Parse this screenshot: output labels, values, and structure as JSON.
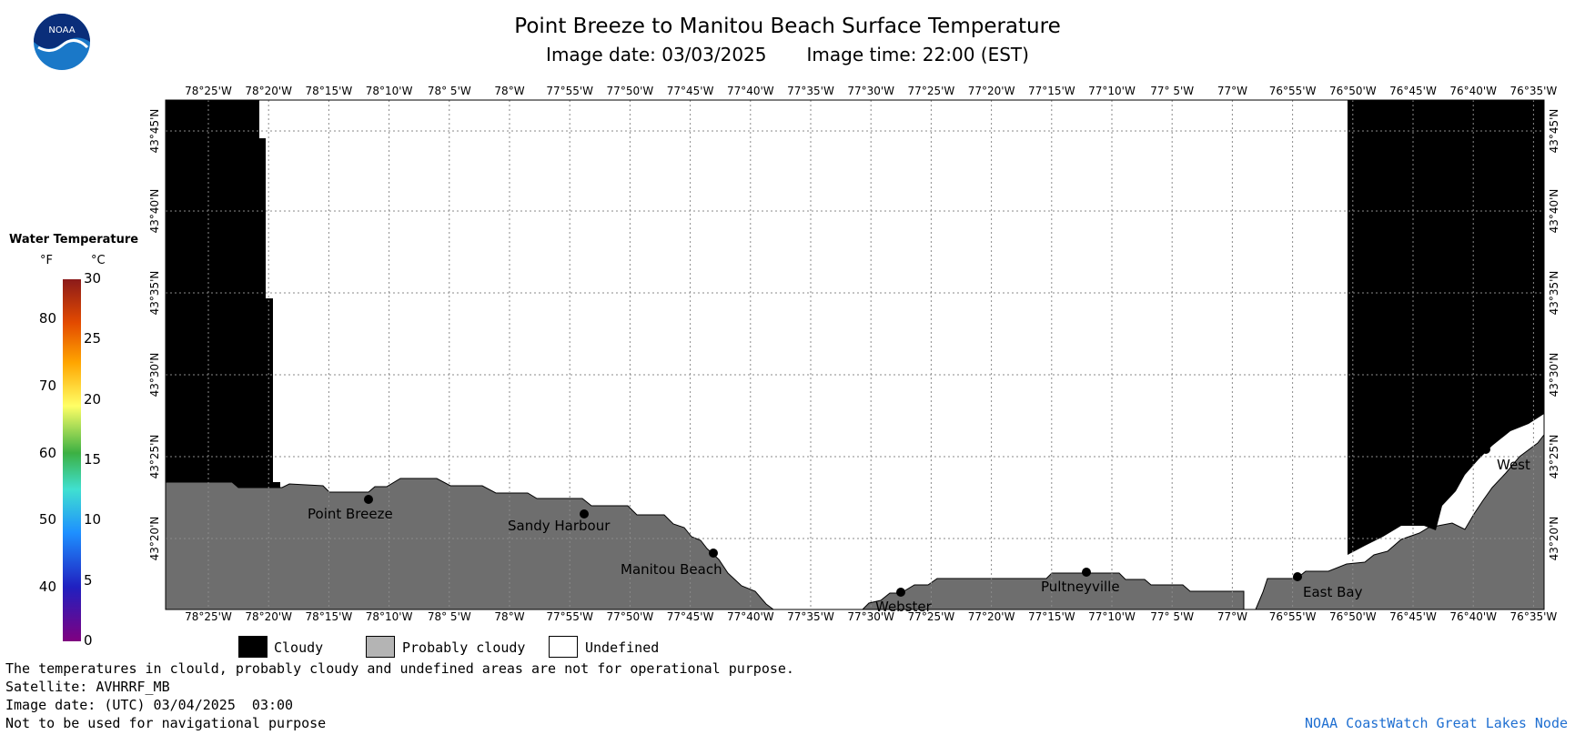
{
  "header": {
    "title": "Point Breeze to Manitou Beach Surface Temperature",
    "image_date": "Image date: 03/03/2025",
    "image_time": "Image time: 22:00 (EST)"
  },
  "logo": {
    "text": "NOAA",
    "icon": "noaa-logo"
  },
  "colorbar": {
    "title": "Water Temperature",
    "unit_f": "°F",
    "unit_c": "°C",
    "ticks_f": [
      "80",
      "70",
      "60",
      "50",
      "40"
    ],
    "ticks_c": [
      "30",
      "25",
      "20",
      "15",
      "10",
      "5",
      "0"
    ]
  },
  "map": {
    "lon_labels": [
      "78°25'W",
      "78°20'W",
      "78°15'W",
      "78°10'W",
      "78° 5'W",
      "78°W",
      "77°55'W",
      "77°50'W",
      "77°45'W",
      "77°40'W",
      "77°35'W",
      "77°30'W",
      "77°25'W",
      "77°20'W",
      "77°15'W",
      "77°10'W",
      "77° 5'W",
      "77°W",
      "76°55'W",
      "76°50'W",
      "76°45'W",
      "76°40'W",
      "76°35'W"
    ],
    "lat_labels": [
      "43°45'N",
      "43°40'N",
      "43°35'N",
      "43°30'N",
      "43°25'N",
      "43°20'N"
    ],
    "places": [
      "Point Breeze",
      "Sandy Harbour",
      "Manitou Beach",
      "Webster",
      "Pultneyville",
      "East Bay",
      "West"
    ],
    "colors": {
      "cloudy": "#000000",
      "probably_cloudy": "#6e6e6e",
      "undefined": "#ffffff"
    }
  },
  "legend": {
    "cloudy": "Cloudy",
    "probably_cloudy": "Probably cloudy",
    "undefined": "Undefined"
  },
  "footer": {
    "line1": "The temperatures in clould, probably cloudy and undefined areas are not for operational purpose.",
    "line2": "Satellite: AVHRRF_MB",
    "line3": "Image date: (UTC) 03/04/2025  03:00",
    "line4": "Not to be used for navigational purpose",
    "credit": "NOAA CoastWatch Great Lakes Node"
  }
}
